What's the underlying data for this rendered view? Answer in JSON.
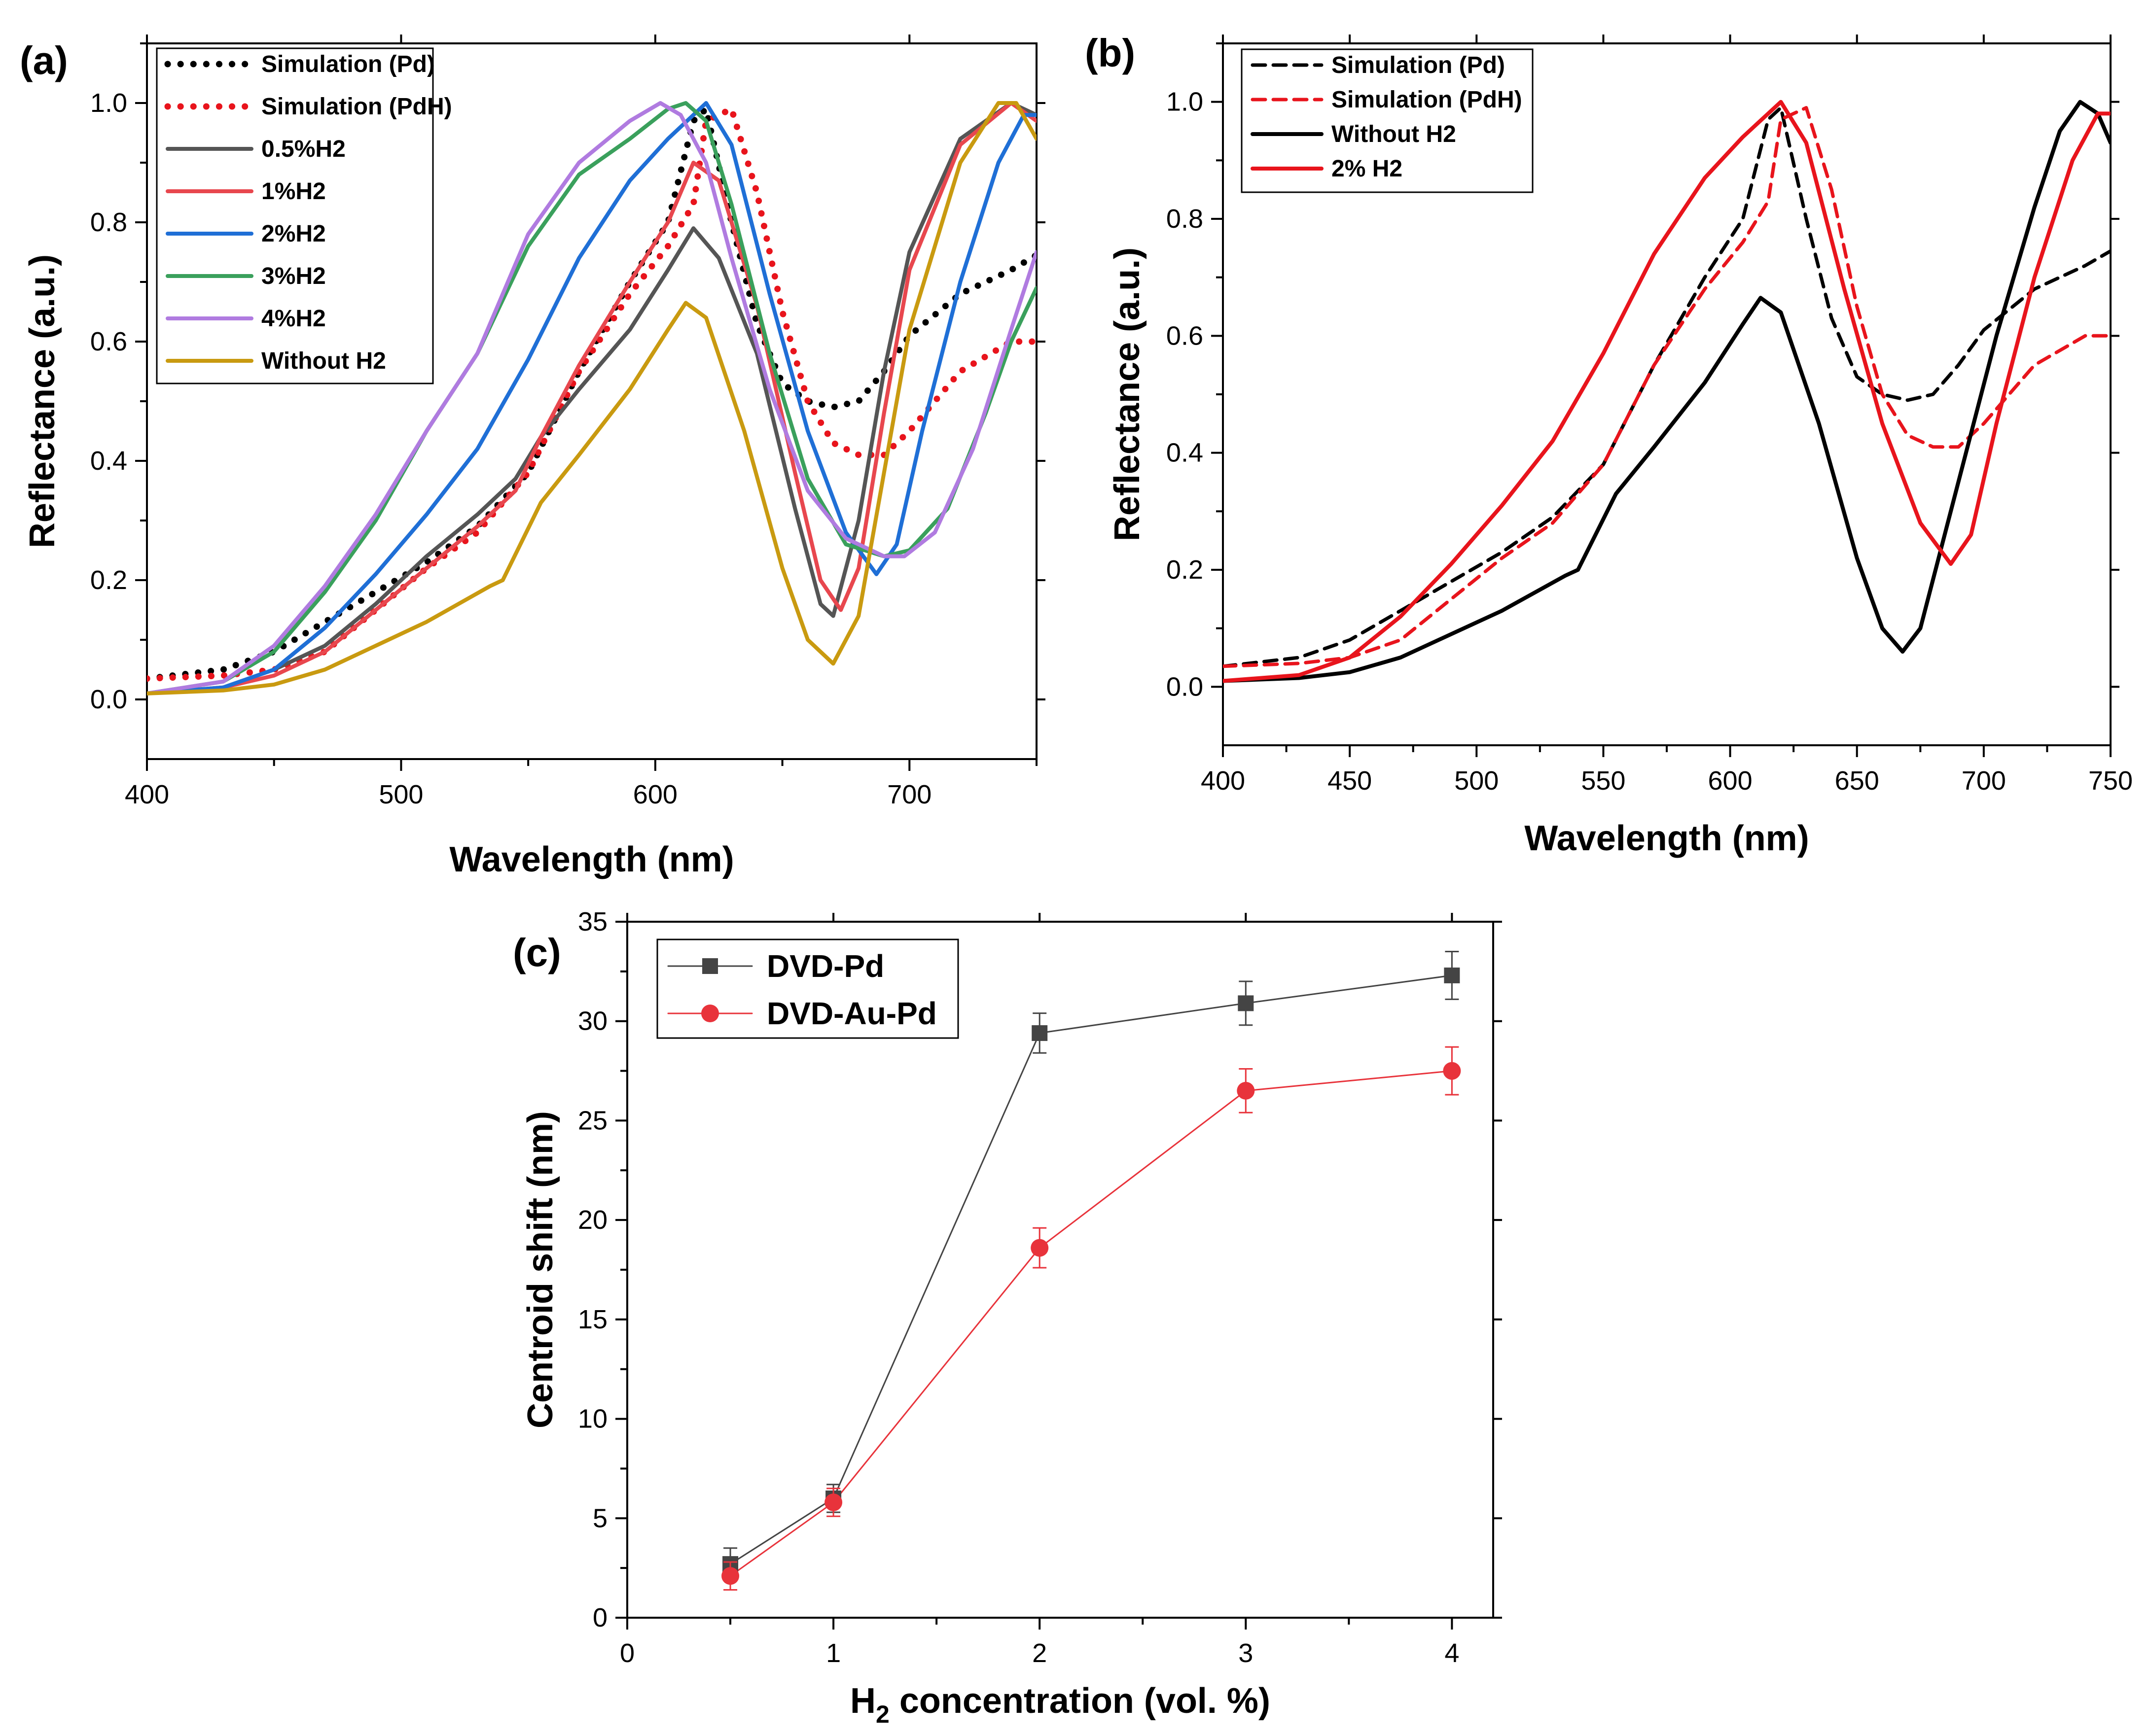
{
  "chart_data": [
    {
      "panel": "(a)",
      "type": "line",
      "xlabel": "Wavelength (nm)",
      "ylabel": "Reflectance (a.u.)",
      "xlim": [
        400,
        750
      ],
      "ylim": [
        -0.1,
        1.1
      ],
      "xticks": [
        400,
        500,
        600,
        700
      ],
      "yticks": [
        0.0,
        0.2,
        0.4,
        0.6,
        0.8,
        1.0
      ],
      "legend_position": "top-left",
      "series": [
        {
          "name": "Simulation (Pd)",
          "color": "#000000",
          "style": "dotted",
          "x": [
            400,
            430,
            450,
            470,
            490,
            510,
            530,
            550,
            570,
            590,
            605,
            615,
            620,
            630,
            640,
            650,
            660,
            670,
            680,
            690,
            700,
            720,
            740,
            750
          ],
          "y": [
            0.035,
            0.05,
            0.08,
            0.13,
            0.18,
            0.23,
            0.29,
            0.38,
            0.55,
            0.7,
            0.8,
            0.97,
            0.99,
            0.8,
            0.63,
            0.53,
            0.5,
            0.49,
            0.5,
            0.55,
            0.61,
            0.68,
            0.72,
            0.745
          ]
        },
        {
          "name": "Simulation (PdH)",
          "color": "#e8141c",
          "style": "dotted",
          "x": [
            400,
            430,
            450,
            470,
            490,
            510,
            530,
            550,
            570,
            590,
            605,
            615,
            620,
            630,
            640,
            650,
            660,
            670,
            680,
            690,
            700,
            720,
            740,
            750
          ],
          "y": [
            0.035,
            0.04,
            0.05,
            0.08,
            0.15,
            0.22,
            0.28,
            0.38,
            0.55,
            0.68,
            0.76,
            0.83,
            0.97,
            0.99,
            0.85,
            0.65,
            0.5,
            0.43,
            0.41,
            0.41,
            0.45,
            0.55,
            0.6,
            0.6
          ]
        },
        {
          "name": "0.5%H2",
          "color": "#555555",
          "style": "solid",
          "x": [
            400,
            430,
            450,
            470,
            490,
            510,
            530,
            545,
            555,
            570,
            590,
            605,
            615,
            625,
            640,
            655,
            665,
            670,
            680,
            690,
            700,
            720,
            740,
            750
          ],
          "y": [
            0.01,
            0.02,
            0.05,
            0.09,
            0.16,
            0.24,
            0.31,
            0.37,
            0.44,
            0.52,
            0.62,
            0.72,
            0.79,
            0.74,
            0.58,
            0.32,
            0.16,
            0.14,
            0.3,
            0.55,
            0.75,
            0.94,
            1.0,
            0.98
          ]
        },
        {
          "name": "1%H2",
          "color": "#e8474e",
          "style": "solid",
          "x": [
            400,
            430,
            450,
            470,
            490,
            510,
            530,
            545,
            555,
            570,
            590,
            605,
            615,
            625,
            640,
            655,
            665,
            673,
            680,
            690,
            700,
            720,
            740,
            750
          ],
          "y": [
            0.01,
            0.02,
            0.04,
            0.08,
            0.15,
            0.22,
            0.29,
            0.35,
            0.44,
            0.56,
            0.7,
            0.8,
            0.9,
            0.87,
            0.66,
            0.38,
            0.2,
            0.15,
            0.22,
            0.48,
            0.72,
            0.93,
            1.0,
            0.97
          ]
        },
        {
          "name": "2%H2",
          "color": "#1f6fd6",
          "style": "solid",
          "x": [
            400,
            430,
            450,
            470,
            490,
            510,
            530,
            550,
            570,
            590,
            605,
            615,
            620,
            630,
            645,
            660,
            675,
            687,
            695,
            705,
            720,
            735,
            745,
            750
          ],
          "y": [
            0.01,
            0.02,
            0.05,
            0.12,
            0.21,
            0.31,
            0.42,
            0.57,
            0.74,
            0.87,
            0.94,
            0.98,
            1.0,
            0.93,
            0.68,
            0.45,
            0.28,
            0.21,
            0.26,
            0.45,
            0.7,
            0.9,
            0.98,
            0.98
          ]
        },
        {
          "name": "3%H2",
          "color": "#3aa05c",
          "style": "solid",
          "x": [
            400,
            430,
            450,
            470,
            490,
            510,
            530,
            550,
            570,
            590,
            605,
            612,
            620,
            630,
            645,
            660,
            675,
            690,
            700,
            715,
            730,
            740,
            750
          ],
          "y": [
            0.01,
            0.03,
            0.08,
            0.18,
            0.3,
            0.45,
            0.58,
            0.76,
            0.88,
            0.94,
            0.99,
            1.0,
            0.97,
            0.83,
            0.58,
            0.37,
            0.26,
            0.24,
            0.25,
            0.32,
            0.48,
            0.6,
            0.69
          ]
        },
        {
          "name": "4%H2",
          "color": "#b07be0",
          "style": "solid",
          "x": [
            400,
            430,
            450,
            470,
            490,
            510,
            530,
            550,
            570,
            590,
            602,
            610,
            620,
            630,
            645,
            660,
            675,
            690,
            698,
            710,
            725,
            740,
            750
          ],
          "y": [
            0.01,
            0.03,
            0.09,
            0.19,
            0.31,
            0.45,
            0.58,
            0.78,
            0.9,
            0.97,
            1.0,
            0.98,
            0.9,
            0.74,
            0.52,
            0.35,
            0.27,
            0.24,
            0.24,
            0.28,
            0.42,
            0.62,
            0.75
          ]
        },
        {
          "name": "Without H2",
          "color": "#c99a10",
          "style": "solid",
          "x": [
            400,
            430,
            450,
            470,
            490,
            510,
            535,
            540,
            555,
            570,
            590,
            605,
            612,
            620,
            635,
            650,
            660,
            670,
            680,
            690,
            700,
            720,
            735,
            742,
            750
          ],
          "y": [
            0.01,
            0.015,
            0.025,
            0.05,
            0.09,
            0.13,
            0.19,
            0.2,
            0.33,
            0.41,
            0.52,
            0.62,
            0.665,
            0.64,
            0.45,
            0.22,
            0.1,
            0.06,
            0.14,
            0.38,
            0.62,
            0.9,
            1.0,
            1.0,
            0.94
          ]
        }
      ]
    },
    {
      "panel": "(b)",
      "type": "line",
      "xlabel": "Wavelength (nm)",
      "ylabel": "Reflectance (a.u.)",
      "xlim": [
        400,
        750
      ],
      "ylim": [
        -0.1,
        1.1
      ],
      "xticks": [
        400,
        450,
        500,
        550,
        600,
        650,
        700,
        750
      ],
      "yticks": [
        0.0,
        0.2,
        0.4,
        0.6,
        0.8,
        1.0
      ],
      "legend_position": "top-left",
      "series": [
        {
          "name": "Simulation (Pd)",
          "color": "#000000",
          "style": "dashed",
          "x": [
            400,
            430,
            450,
            470,
            490,
            510,
            530,
            550,
            570,
            590,
            605,
            615,
            620,
            630,
            640,
            650,
            660,
            670,
            680,
            690,
            700,
            720,
            740,
            750
          ],
          "y": [
            0.035,
            0.05,
            0.08,
            0.13,
            0.18,
            0.23,
            0.29,
            0.38,
            0.55,
            0.7,
            0.8,
            0.97,
            0.99,
            0.8,
            0.63,
            0.53,
            0.5,
            0.49,
            0.5,
            0.55,
            0.61,
            0.68,
            0.72,
            0.745
          ]
        },
        {
          "name": "Simulation (PdH)",
          "color": "#e8141c",
          "style": "dashed",
          "x": [
            400,
            430,
            450,
            470,
            490,
            510,
            530,
            550,
            570,
            590,
            605,
            615,
            620,
            630,
            640,
            650,
            660,
            670,
            680,
            690,
            700,
            720,
            740,
            750
          ],
          "y": [
            0.035,
            0.04,
            0.05,
            0.08,
            0.15,
            0.22,
            0.28,
            0.38,
            0.55,
            0.68,
            0.76,
            0.83,
            0.97,
            0.99,
            0.85,
            0.65,
            0.5,
            0.43,
            0.41,
            0.41,
            0.45,
            0.55,
            0.6,
            0.6
          ]
        },
        {
          "name": "Without H2",
          "color": "#000000",
          "style": "solid",
          "x": [
            400,
            430,
            450,
            470,
            490,
            510,
            535,
            540,
            555,
            570,
            590,
            605,
            612,
            620,
            635,
            650,
            660,
            668,
            675,
            690,
            705,
            720,
            730,
            738,
            745,
            750
          ],
          "y": [
            0.01,
            0.015,
            0.025,
            0.05,
            0.09,
            0.13,
            0.19,
            0.2,
            0.33,
            0.41,
            0.52,
            0.62,
            0.665,
            0.64,
            0.45,
            0.22,
            0.1,
            0.06,
            0.1,
            0.35,
            0.6,
            0.82,
            0.95,
            1.0,
            0.98,
            0.93
          ]
        },
        {
          "name": "2% H2",
          "color": "#e8141c",
          "style": "solid",
          "x": [
            400,
            430,
            450,
            470,
            490,
            510,
            530,
            550,
            570,
            590,
            605,
            615,
            620,
            630,
            645,
            660,
            675,
            687,
            695,
            705,
            720,
            735,
            745,
            750
          ],
          "y": [
            0.01,
            0.02,
            0.05,
            0.12,
            0.21,
            0.31,
            0.42,
            0.57,
            0.74,
            0.87,
            0.94,
            0.98,
            1.0,
            0.93,
            0.68,
            0.45,
            0.28,
            0.21,
            0.26,
            0.45,
            0.7,
            0.9,
            0.98,
            0.98
          ]
        }
      ]
    },
    {
      "panel": "(c)",
      "type": "line",
      "xlabel_main": "H",
      "xlabel_sub": "2",
      "xlabel_rest": " concentration (vol. %)",
      "ylabel": "Centroid shift (nm)",
      "xlim": [
        0,
        4.2
      ],
      "ylim": [
        0,
        35
      ],
      "xticks": [
        0,
        1,
        2,
        3,
        4
      ],
      "yticks": [
        0,
        5,
        10,
        15,
        20,
        25,
        30,
        35
      ],
      "legend_position": "top-left",
      "series": [
        {
          "name": "DVD-Pd",
          "color": "#444444",
          "marker": "square",
          "x": [
            0.5,
            1,
            2,
            3,
            4
          ],
          "y": [
            2.7,
            6.0,
            29.4,
            30.9,
            32.3
          ],
          "err": [
            0.8,
            0.7,
            1.0,
            1.1,
            1.2
          ]
        },
        {
          "name": "DVD-Au-Pd",
          "color": "#e8333b",
          "marker": "circle",
          "x": [
            0.5,
            1,
            2,
            3,
            4
          ],
          "y": [
            2.1,
            5.8,
            18.6,
            26.5,
            27.5
          ],
          "err": [
            0.7,
            0.7,
            1.0,
            1.1,
            1.2
          ]
        }
      ]
    }
  ]
}
